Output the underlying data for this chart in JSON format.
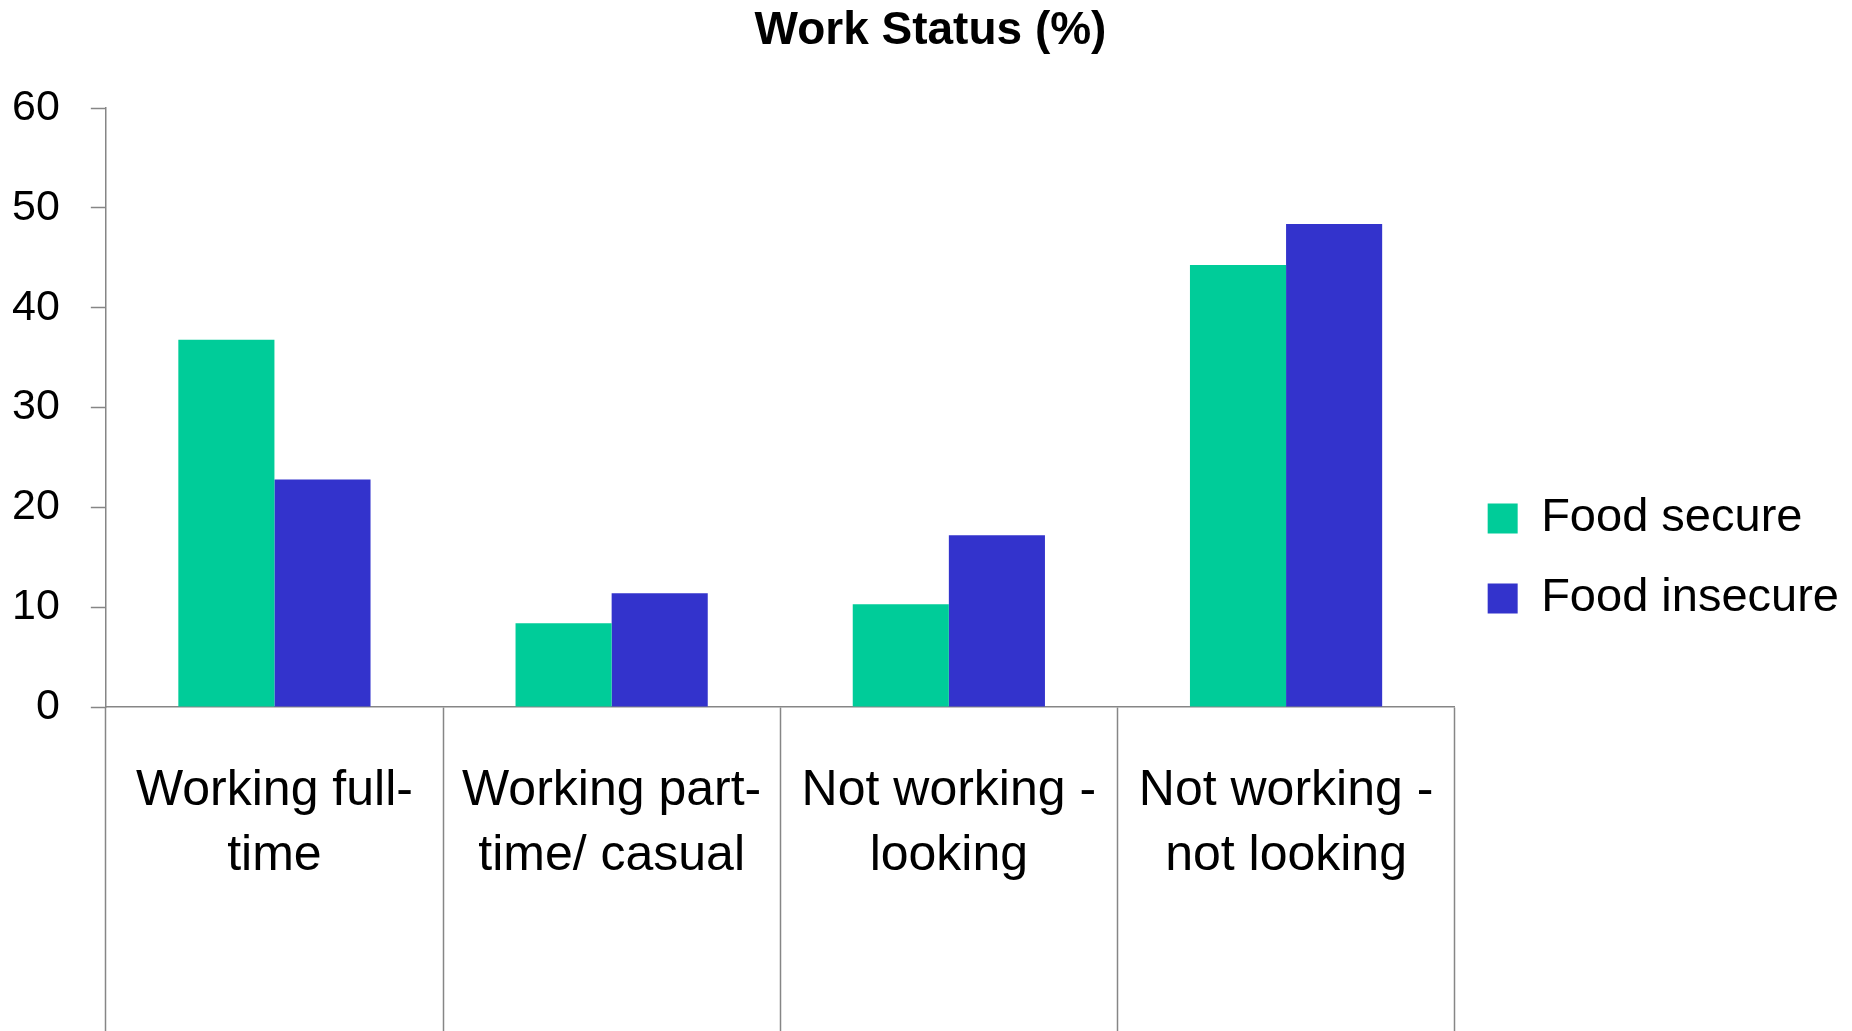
{
  "chart_data": {
    "type": "bar",
    "title": "Work Status (%)",
    "categories": [
      "Working full-time",
      "Working part-time/ casual",
      "Not working - looking",
      "Not working - not looking"
    ],
    "series": [
      {
        "name": "Food secure",
        "color": "#00cc99",
        "values": [
          36.8,
          8.4,
          10.3,
          44.3
        ]
      },
      {
        "name": "Food insecure",
        "color": "#3333cc",
        "values": [
          22.8,
          11.4,
          17.2,
          48.4
        ]
      }
    ],
    "ylim": [
      0,
      60
    ],
    "yticks": [
      0,
      10,
      20,
      30,
      40,
      50,
      60
    ],
    "grid": false,
    "legend": "right"
  }
}
